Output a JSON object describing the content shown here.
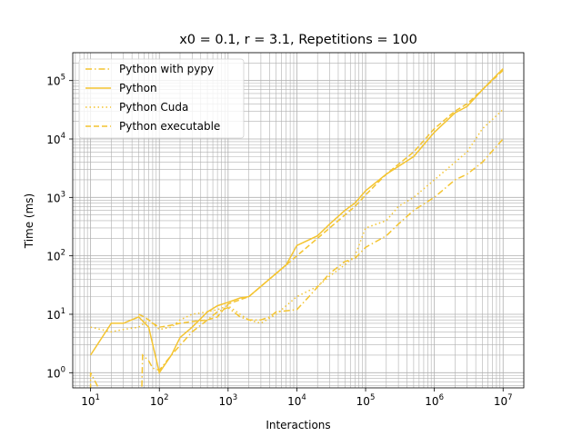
{
  "chart_data": {
    "type": "line",
    "title": "x0 = 0.1, r = 3.1, Repetitions = 100",
    "xlabel": "Interactions",
    "ylabel": "Time (ms)",
    "xscale": "log",
    "yscale": "log",
    "xlim": [
      5.5,
      20000000
    ],
    "ylim": [
      0.55,
      300000
    ],
    "xticks": [
      {
        "value": 10,
        "base": "10",
        "exp": "1"
      },
      {
        "value": 100,
        "base": "10",
        "exp": "2"
      },
      {
        "value": 1000,
        "base": "10",
        "exp": "3"
      },
      {
        "value": 10000,
        "base": "10",
        "exp": "4"
      },
      {
        "value": 100000,
        "base": "10",
        "exp": "5"
      },
      {
        "value": 1000000,
        "base": "10",
        "exp": "6"
      },
      {
        "value": 10000000,
        "base": "10",
        "exp": "7"
      }
    ],
    "yticks": [
      {
        "value": 1,
        "base": "10",
        "exp": "0"
      },
      {
        "value": 10,
        "base": "10",
        "exp": "1"
      },
      {
        "value": 100,
        "base": "10",
        "exp": "2"
      },
      {
        "value": 1000,
        "base": "10",
        "exp": "3"
      },
      {
        "value": 10000,
        "base": "10",
        "exp": "4"
      },
      {
        "value": 100000,
        "base": "10",
        "exp": "5"
      }
    ],
    "grid": "major and minor",
    "legend_position": "top-left",
    "series": [
      {
        "name": "Python with pypy",
        "color": "#f4c430",
        "style": "dashdot",
        "points": [
          [
            10,
            0.3
          ],
          [
            10,
            1
          ],
          [
            17,
            0.3
          ],
          [
            17,
            0.5
          ],
          [
            55,
            0.3
          ],
          [
            57,
            2
          ],
          [
            70,
            1.6
          ],
          [
            80,
            1.2
          ],
          [
            100,
            1.1
          ],
          [
            150,
            2
          ],
          [
            300,
            5
          ],
          [
            500,
            8
          ],
          [
            700,
            11
          ],
          [
            1000,
            13
          ],
          [
            1500,
            9
          ],
          [
            2000,
            8
          ],
          [
            3000,
            8
          ],
          [
            4000,
            9
          ],
          [
            5000,
            11
          ],
          [
            10000,
            12
          ],
          [
            15000,
            20
          ],
          [
            30000,
            50
          ],
          [
            50000,
            80
          ],
          [
            70000,
            90
          ],
          [
            100000,
            140
          ],
          [
            200000,
            220
          ],
          [
            300000,
            350
          ],
          [
            500000,
            600
          ],
          [
            1000000,
            1000
          ],
          [
            2000000,
            2000
          ],
          [
            3000000,
            2500
          ],
          [
            5000000,
            4000
          ],
          [
            10000000,
            10000
          ]
        ]
      },
      {
        "name": "Python",
        "color": "#f4c430",
        "style": "solid",
        "points": [
          [
            10,
            2
          ],
          [
            20,
            7
          ],
          [
            30,
            7
          ],
          [
            50,
            9
          ],
          [
            70,
            6
          ],
          [
            100,
            1
          ],
          [
            150,
            2
          ],
          [
            200,
            4
          ],
          [
            300,
            6
          ],
          [
            500,
            11
          ],
          [
            700,
            14
          ],
          [
            1000,
            16
          ],
          [
            1500,
            19
          ],
          [
            2000,
            20
          ],
          [
            3000,
            30
          ],
          [
            5000,
            50
          ],
          [
            7000,
            70
          ],
          [
            10000,
            150
          ],
          [
            20000,
            220
          ],
          [
            30000,
            350
          ],
          [
            50000,
            600
          ],
          [
            70000,
            800
          ],
          [
            100000,
            1300
          ],
          [
            200000,
            2500
          ],
          [
            500000,
            5000
          ],
          [
            1000000,
            13000
          ],
          [
            2000000,
            28000
          ],
          [
            3000000,
            36000
          ],
          [
            5000000,
            70000
          ],
          [
            10000000,
            160000
          ]
        ]
      },
      {
        "name": "Python Cuda",
        "color": "#f4c430",
        "style": "dotted",
        "points": [
          [
            10,
            6
          ],
          [
            20,
            5
          ],
          [
            30,
            5.5
          ],
          [
            50,
            6
          ],
          [
            70,
            8
          ],
          [
            100,
            5.5
          ],
          [
            150,
            6
          ],
          [
            200,
            8
          ],
          [
            300,
            10
          ],
          [
            500,
            11
          ],
          [
            700,
            12
          ],
          [
            1000,
            14
          ],
          [
            1500,
            10
          ],
          [
            2000,
            8
          ],
          [
            3000,
            7
          ],
          [
            5000,
            10
          ],
          [
            10000,
            20
          ],
          [
            20000,
            30
          ],
          [
            30000,
            45
          ],
          [
            50000,
            70
          ],
          [
            70000,
            100
          ],
          [
            100000,
            300
          ],
          [
            200000,
            400
          ],
          [
            300000,
            700
          ],
          [
            500000,
            1000
          ],
          [
            1000000,
            2000
          ],
          [
            2000000,
            4000
          ],
          [
            3000000,
            6000
          ],
          [
            5000000,
            15000
          ],
          [
            10000000,
            32000
          ]
        ]
      },
      {
        "name": "Python executable",
        "color": "#f4c430",
        "style": "dashed",
        "points": [
          [
            50,
            10
          ],
          [
            60,
            9
          ],
          [
            70,
            8
          ],
          [
            80,
            7
          ],
          [
            100,
            6
          ],
          [
            150,
            6.5
          ],
          [
            200,
            7
          ],
          [
            300,
            7.5
          ],
          [
            500,
            8
          ],
          [
            700,
            9
          ],
          [
            1000,
            15
          ],
          [
            2000,
            20
          ],
          [
            3000,
            30
          ],
          [
            5000,
            50
          ],
          [
            7000,
            70
          ],
          [
            10000,
            100
          ],
          [
            20000,
            200
          ],
          [
            30000,
            300
          ],
          [
            50000,
            500
          ],
          [
            70000,
            700
          ],
          [
            100000,
            1100
          ],
          [
            200000,
            2500
          ],
          [
            500000,
            6000
          ],
          [
            1000000,
            15000
          ],
          [
            2000000,
            30000
          ],
          [
            3000000,
            40000
          ],
          [
            5000000,
            70000
          ],
          [
            10000000,
            150000
          ]
        ]
      }
    ]
  }
}
